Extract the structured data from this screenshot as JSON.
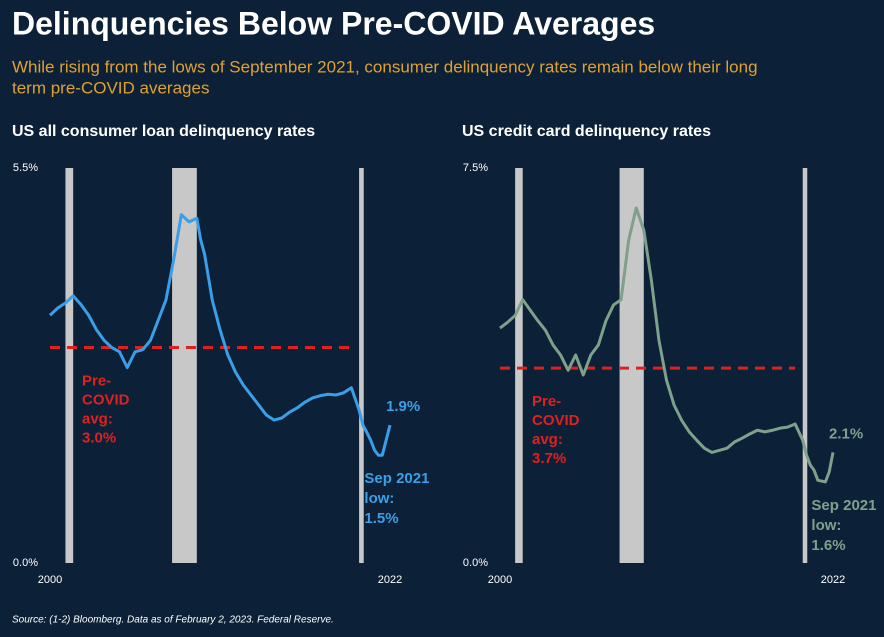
{
  "header": {
    "title": "Delinquencies Below Pre-COVID Averages",
    "subtitle": [
      "While rising from the lows of September 2021, consumer delinquency rates remain below their long",
      "term pre-COVID averages"
    ]
  },
  "chart_data": [
    {
      "type": "line",
      "title": "US all consumer loan delinquency rates",
      "color": "#3a9ee8",
      "x": [
        2000,
        2000.5,
        2001,
        2001.5,
        2002,
        2002.5,
        2003,
        2003.5,
        2004,
        2004.5,
        2005,
        2005.5,
        2006,
        2006.5,
        2007,
        2007.5,
        2008,
        2008.5,
        2009,
        2009.5,
        2009.75,
        2010,
        2010.5,
        2011,
        2011.5,
        2012,
        2012.5,
        2013,
        2013.5,
        2014,
        2014.5,
        2015,
        2015.5,
        2016,
        2016.5,
        2017,
        2017.5,
        2018,
        2018.5,
        2019,
        2019.5,
        2020,
        2020.25,
        2020.5,
        2020.75,
        2021,
        2021.25,
        2021.5,
        2021.75,
        2022
      ],
      "values": [
        3.45,
        3.55,
        3.62,
        3.72,
        3.6,
        3.45,
        3.25,
        3.1,
        3.0,
        2.94,
        2.72,
        2.94,
        2.97,
        3.1,
        3.38,
        3.66,
        4.22,
        4.85,
        4.75,
        4.8,
        4.5,
        4.3,
        3.66,
        3.25,
        2.9,
        2.66,
        2.48,
        2.34,
        2.2,
        2.06,
        1.99,
        2.02,
        2.1,
        2.16,
        2.24,
        2.3,
        2.33,
        2.35,
        2.34,
        2.37,
        2.44,
        2.13,
        1.92,
        1.82,
        1.71,
        1.57,
        1.5,
        1.5,
        1.71,
        1.92
      ],
      "xlim": [
        2000,
        2022
      ],
      "xticks": [
        2000,
        2022
      ],
      "ylim": [
        0,
        5.5
      ],
      "yticks": [
        {
          "value": 0,
          "label": "0.0%"
        },
        {
          "value": 5.5,
          "label": "5.5%"
        }
      ],
      "recessions": [
        [
          2001,
          2001.5
        ],
        [
          2007.9,
          2009.5
        ],
        [
          2020,
          2020.3
        ]
      ],
      "avg_line": 3.0,
      "avg_range": [
        2000,
        2019.5
      ],
      "avg_color": "#e0201e",
      "avg_label": [
        "Pre-",
        "COVID",
        "avg:",
        "3.0%"
      ],
      "end_label": "1.9%",
      "low_label": [
        "Sep 2021",
        "low:",
        "1.5%"
      ]
    },
    {
      "type": "line",
      "title": "US credit card delinquency rates",
      "color": "#7fa08a",
      "x": [
        2000,
        2000.5,
        2001,
        2001.5,
        2002,
        2002.5,
        2003,
        2003.5,
        2004,
        2004.5,
        2005,
        2005.5,
        2006,
        2006.5,
        2007,
        2007.5,
        2008,
        2008.5,
        2009,
        2009.5,
        2010,
        2010.5,
        2011,
        2011.5,
        2012,
        2012.5,
        2013,
        2013.5,
        2014,
        2014.5,
        2015,
        2015.5,
        2016,
        2016.5,
        2017,
        2017.5,
        2018,
        2018.5,
        2019,
        2019.5,
        2020,
        2020.25,
        2020.5,
        2020.75,
        2021,
        2021.5,
        2021.75,
        2022
      ],
      "values": [
        4.46,
        4.57,
        4.7,
        5.0,
        4.8,
        4.6,
        4.42,
        4.14,
        3.95,
        3.66,
        3.95,
        3.57,
        3.95,
        4.14,
        4.6,
        4.9,
        5.0,
        6.13,
        6.74,
        6.32,
        5.37,
        4.23,
        3.47,
        3.0,
        2.71,
        2.49,
        2.33,
        2.18,
        2.1,
        2.14,
        2.18,
        2.3,
        2.37,
        2.45,
        2.52,
        2.49,
        2.52,
        2.56,
        2.58,
        2.64,
        2.33,
        2.05,
        1.86,
        1.76,
        1.57,
        1.54,
        1.73,
        2.1
      ],
      "xlim": [
        2000,
        2022
      ],
      "xticks": [
        2000,
        2022
      ],
      "ylim": [
        0,
        7.5
      ],
      "yticks": [
        {
          "value": 0,
          "label": "0.0%"
        },
        {
          "value": 7.5,
          "label": "7.5%"
        }
      ],
      "recessions": [
        [
          2001,
          2001.5
        ],
        [
          2007.9,
          2009.5
        ],
        [
          2020,
          2020.3
        ]
      ],
      "avg_line": 3.7,
      "avg_range": [
        2000,
        2019.5
      ],
      "avg_color": "#e0201e",
      "avg_label": [
        "Pre-",
        "COVID",
        "avg:",
        "3.7%"
      ],
      "end_label": "2.1%",
      "low_label": [
        "Sep 2021",
        "low:",
        "1.6%"
      ]
    }
  ],
  "footer": {
    "source": "Source:  (1-2) Bloomberg. Data as of February 2, 2023. Federal Reserve."
  }
}
